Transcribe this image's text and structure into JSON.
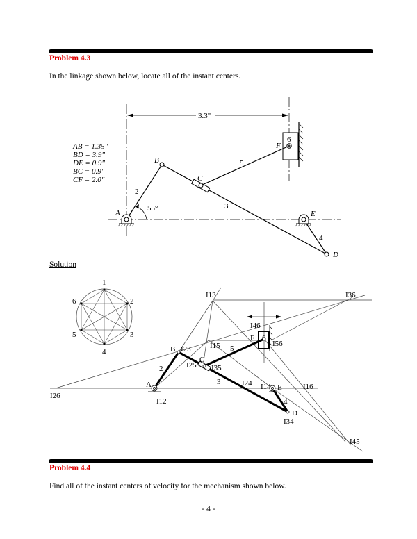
{
  "problem1": {
    "title": "Problem 4.3",
    "statement": "In the linkage shown below, locate all of the instant centers."
  },
  "figure1": {
    "dimension": "3.3\"",
    "lengths": [
      "AB = 1.35\"",
      "BD = 3.9\"",
      "DE = 0.9\"",
      "BC = 0.9\"",
      "CF = 2.0\""
    ],
    "angle": "55°",
    "points": {
      "A": "A",
      "B": "B",
      "C": "C",
      "D": "D",
      "E": "E",
      "F": "F"
    },
    "links": {
      "l2": "2",
      "l3": "3",
      "l4": "4",
      "l5": "5",
      "l6": "6"
    }
  },
  "solution_label": "Solution",
  "figure2": {
    "circle_nodes": [
      "1",
      "2",
      "3",
      "4",
      "5",
      "6"
    ],
    "points": {
      "A": "A",
      "B": "B",
      "C": "C",
      "D": "D",
      "E": "E",
      "F": "F"
    },
    "links": {
      "l2": "2",
      "l3": "3",
      "l4": "4",
      "l5": "5",
      "l6": "6"
    },
    "centers": {
      "I12": "I12",
      "I13": "I13",
      "I14": "I14",
      "I15": "I15",
      "I16": "I16",
      "I23": "I23",
      "I24": "I24",
      "I25": "I25",
      "I26": "I26",
      "I34": "I34",
      "I35": "I35",
      "I36": "I36",
      "I45": "I45",
      "I46": "I46",
      "I56": "I56"
    }
  },
  "problem2": {
    "title": "Problem 4.4",
    "statement": "Find all of the instant centers of velocity for the mechanism shown below."
  },
  "page_number": "- 4 -",
  "colors": {
    "heading": "#e00000",
    "rule": "#000000"
  }
}
